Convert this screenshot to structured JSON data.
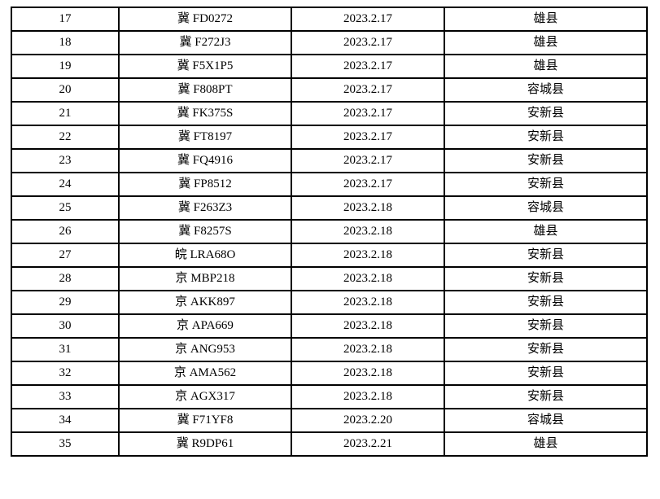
{
  "page": {
    "background_color": "#ffffff",
    "text_color": "#000000",
    "border_color": "#000000"
  },
  "table": {
    "cell_keys": [
      "index",
      "plate",
      "date",
      "location"
    ],
    "rows": [
      {
        "index": "17",
        "plate": "冀 FD0272",
        "date": "2023.2.17",
        "location": "雄县"
      },
      {
        "index": "18",
        "plate": "冀 F272J3",
        "date": "2023.2.17",
        "location": "雄县"
      },
      {
        "index": "19",
        "plate": "冀 F5X1P5",
        "date": "2023.2.17",
        "location": "雄县"
      },
      {
        "index": "20",
        "plate": "冀 F808PT",
        "date": "2023.2.17",
        "location": "容城县"
      },
      {
        "index": "21",
        "plate": "冀 FK375S",
        "date": "2023.2.17",
        "location": "安新县"
      },
      {
        "index": "22",
        "plate": "冀 FT8197",
        "date": "2023.2.17",
        "location": "安新县"
      },
      {
        "index": "23",
        "plate": "冀 FQ4916",
        "date": "2023.2.17",
        "location": "安新县"
      },
      {
        "index": "24",
        "plate": "冀 FP8512",
        "date": "2023.2.17",
        "location": "安新县"
      },
      {
        "index": "25",
        "plate": "冀 F263Z3",
        "date": "2023.2.18",
        "location": "容城县"
      },
      {
        "index": "26",
        "plate": "冀 F8257S",
        "date": "2023.2.18",
        "location": "雄县"
      },
      {
        "index": "27",
        "plate": "皖 LRA68O",
        "date": "2023.2.18",
        "location": "安新县"
      },
      {
        "index": "28",
        "plate": "京 MBP218",
        "date": "2023.2.18",
        "location": "安新县"
      },
      {
        "index": "29",
        "plate": "京 AKK897",
        "date": "2023.2.18",
        "location": "安新县"
      },
      {
        "index": "30",
        "plate": "京 APA669",
        "date": "2023.2.18",
        "location": "安新县"
      },
      {
        "index": "31",
        "plate": "京 ANG953",
        "date": "2023.2.18",
        "location": "安新县"
      },
      {
        "index": "32",
        "plate": "京 AMA562",
        "date": "2023.2.18",
        "location": "安新县"
      },
      {
        "index": "33",
        "plate": "京 AGX317",
        "date": "2023.2.18",
        "location": "安新县"
      },
      {
        "index": "34",
        "plate": "冀 F71YF8",
        "date": "2023.2.20",
        "location": "容城县"
      },
      {
        "index": "35",
        "plate": "冀 R9DP61",
        "date": "2023.2.21",
        "location": "雄县"
      }
    ]
  }
}
